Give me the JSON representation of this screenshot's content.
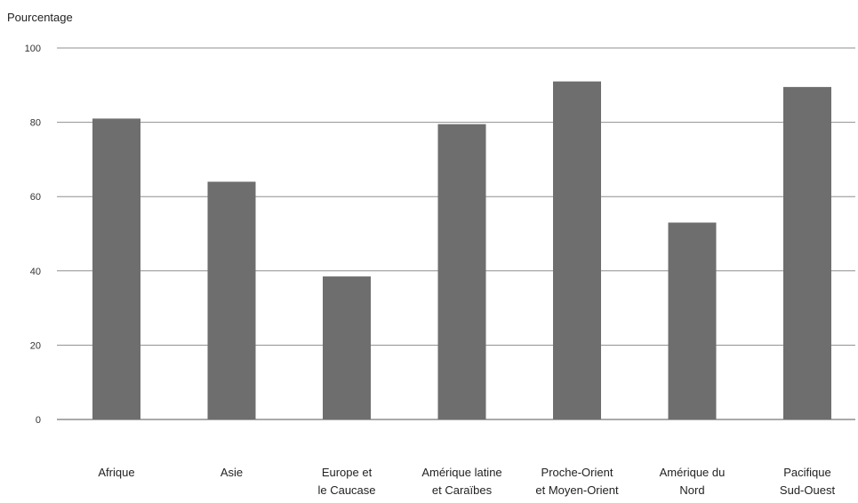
{
  "chart_data": {
    "type": "bar",
    "title": "",
    "xlabel": "",
    "ylabel": "Pourcentage",
    "ylim": [
      0,
      100
    ],
    "yticks": [
      0,
      20,
      40,
      60,
      80,
      100
    ],
    "grid": true,
    "categories": [
      "Afrique",
      "Asie",
      "Europe et le Caucase",
      "Amérique latine et Caraïbes",
      "Proche-Orient et Moyen-Orient",
      "Amérique du Nord",
      "Pacifique Sud-Ouest"
    ],
    "category_lines": [
      [
        "Afrique"
      ],
      [
        "Asie"
      ],
      [
        "Europe et",
        "le Caucase"
      ],
      [
        "Amérique latine",
        "et Caraïbes"
      ],
      [
        "Proche-Orient",
        "et Moyen-Orient"
      ],
      [
        "Amérique du",
        "Nord"
      ],
      [
        "Pacifique",
        "Sud-Ouest"
      ]
    ],
    "values": [
      81,
      64,
      38.5,
      79.5,
      91,
      53,
      89.5
    ],
    "colors": {
      "bar": "#6e6e6e",
      "grid": "#8f8f8f",
      "axis": "#555555"
    }
  }
}
